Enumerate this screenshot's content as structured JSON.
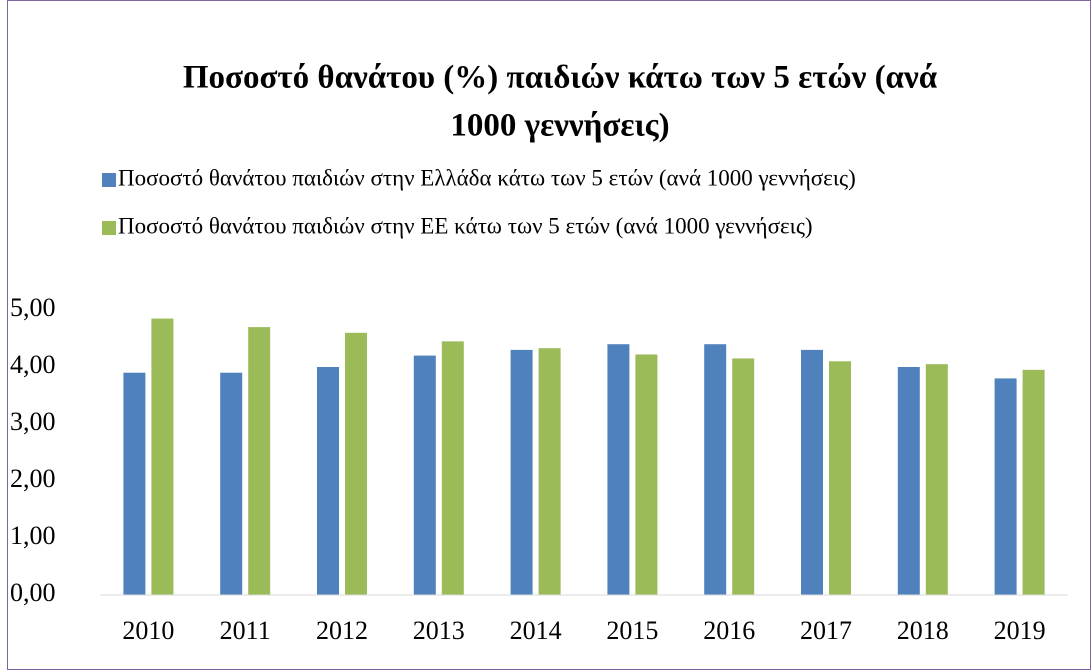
{
  "chart_data": {
    "type": "bar",
    "title_lines": [
      "Ποσοστό θανάτου (%) παιδιών κάτω των 5 ετών (ανά",
      "1000 γεννήσεις)"
    ],
    "categories": [
      "2010",
      "2011",
      "2012",
      "2013",
      "2014",
      "2015",
      "2016",
      "2017",
      "2018",
      "2019"
    ],
    "series": [
      {
        "name": "Ποσοστό  θανάτου παιδιών στην Ελλάδα κάτω των 5 ετών (ανά 1000 γεννήσεις)",
        "color": "#4f81bd",
        "values": [
          3.9,
          3.9,
          4.0,
          4.2,
          4.3,
          4.4,
          4.4,
          4.3,
          4.0,
          3.8
        ]
      },
      {
        "name": "Ποσοστό  θανάτου παιδιών στην ΕΕ κάτω των 5 ετών (ανά 1000 γεννήσεις)",
        "color": "#9bbb59",
        "values": [
          4.85,
          4.7,
          4.6,
          4.45,
          4.33,
          4.22,
          4.15,
          4.1,
          4.05,
          3.95
        ]
      }
    ],
    "ylim": [
      0,
      5
    ],
    "yticks": [
      {
        "value": 0,
        "label": "0,00"
      },
      {
        "value": 1,
        "label": "1,00"
      },
      {
        "value": 2,
        "label": "2,00"
      },
      {
        "value": 3,
        "label": "3,00"
      },
      {
        "value": 4,
        "label": "4,00"
      },
      {
        "value": 5,
        "label": "5,00"
      }
    ],
    "legend": "top",
    "grid": false
  }
}
